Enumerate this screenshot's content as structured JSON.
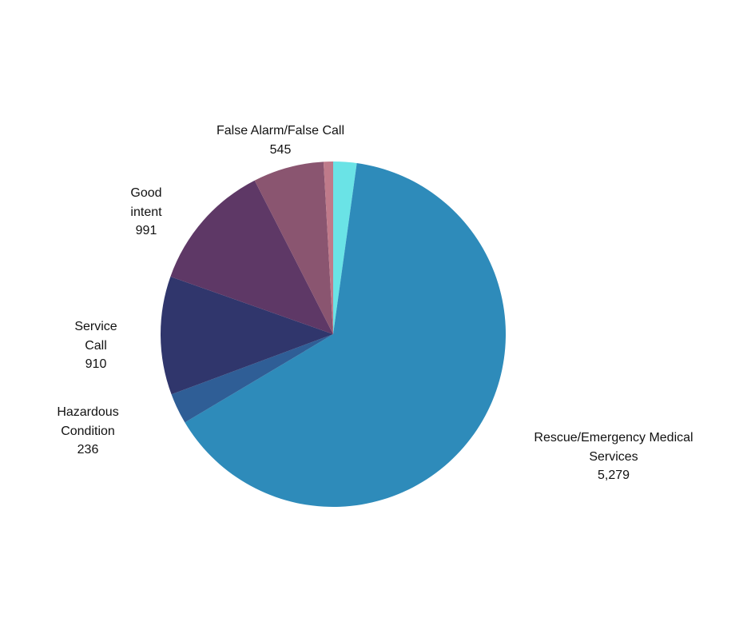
{
  "chart_data": {
    "type": "pie",
    "title": "",
    "start_angle_deg": 0,
    "direction": "clockwise",
    "slices": [
      {
        "label": "",
        "value": 180,
        "color": "#6ae3e6"
      },
      {
        "label": "Rescue/Emergency Medical Services",
        "value": 5279,
        "value_text": "5,279",
        "color": "#2e8bba"
      },
      {
        "label": "Hazardous Condition",
        "value": 236,
        "value_text": "236",
        "color": "#2f5e96"
      },
      {
        "label": "Service Call",
        "value": 910,
        "value_text": "910",
        "color": "#30366c"
      },
      {
        "label": "Good intent",
        "value": 991,
        "value_text": "991",
        "color": "#5e3866"
      },
      {
        "label": "False Alarm/False Call",
        "value": 545,
        "value_text": "545",
        "color": "#8a5570"
      },
      {
        "label": "",
        "value": 73,
        "color": "#bf7a8a"
      }
    ]
  }
}
